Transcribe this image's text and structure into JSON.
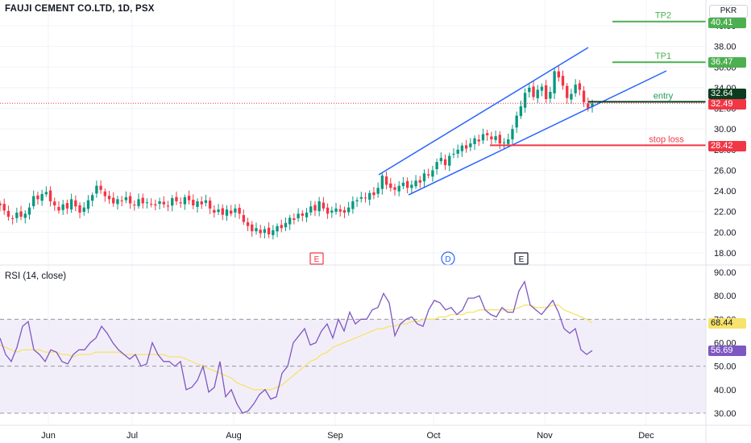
{
  "header": {
    "symbol_title": "FAUJI CEMENT CO.LTD, 1D, PSX",
    "currency": "PKR"
  },
  "rsi_panel": {
    "title": "RSI (14, close)",
    "value_badge": "56.69",
    "ma_badge": "68.44"
  },
  "price_badges": {
    "tp2": "40.41",
    "tp1": "36.47",
    "entry_price": "32.64",
    "last_price": "32.49",
    "stop_loss_price": "28.42"
  },
  "annotations": {
    "tp2": "TP2",
    "tp1": "TP1",
    "entry": "entry",
    "stop_loss": "stop loss"
  },
  "event_markers": [
    "E",
    "D",
    "E"
  ],
  "colors": {
    "up": "#089981",
    "down": "#f23645",
    "channel": "#2962ff",
    "target": "#4caf50",
    "stop": "#f23645",
    "entry_bg": "#0a3d1f",
    "rsi_line": "#7e57c2",
    "rsi_ma": "#f7e26b",
    "rsi_band": "#ede7f6"
  },
  "chart_data": [
    {
      "type": "candlestick",
      "title": "FAUJI CEMENT CO.LTD, 1D, PSX",
      "x_ticks": [
        "Jun",
        "Jul",
        "Aug",
        "Sep",
        "Oct",
        "Nov",
        "Dec"
      ],
      "y_ticks": [
        "18.00",
        "20.00",
        "22.00",
        "24.00",
        "26.00",
        "28.00",
        "30.00",
        "32.00",
        "34.00",
        "36.00",
        "38.00",
        "40.00"
      ],
      "ylim": [
        17.0,
        41.5
      ],
      "close_series": [
        22.6,
        22.1,
        21.5,
        21.3,
        21.9,
        21.5,
        21.8,
        22.4,
        23.5,
        23.2,
        23.7,
        23.9,
        23.0,
        22.6,
        22.1,
        22.7,
        22.3,
        23.2,
        22.5,
        21.9,
        22.4,
        23.1,
        23.6,
        24.5,
        24.1,
        23.5,
        23.2,
        22.8,
        23.2,
        23.0,
        23.4,
        22.8,
        22.6,
        23.2,
        22.8,
        22.9,
        22.7,
        22.6,
        23.0,
        22.7,
        22.5,
        23.3,
        23.0,
        22.8,
        23.4,
        23.1,
        22.6,
        23.0,
        22.7,
        23.1,
        22.3,
        21.9,
        22.2,
        21.7,
        22.2,
        21.8,
        22.3,
        21.8,
        21.0,
        20.6,
        20.1,
        20.4,
        19.9,
        20.3,
        19.8,
        20.2,
        20.6,
        20.4,
        20.9,
        21.4,
        21.2,
        21.8,
        21.6,
        21.9,
        22.5,
        22.1,
        23.0,
        22.3,
        21.8,
        22.1,
        22.3,
        22.0,
        21.9,
        22.4,
        23.0,
        23.1,
        23.4,
        23.3,
        23.8,
        23.6,
        24.3,
        25.5,
        24.6,
        24.3,
        24.1,
        24.5,
        24.8,
        24.3,
        24.6,
        25.0,
        24.8,
        25.7,
        25.5,
        26.0,
        26.8,
        27.2,
        26.5,
        27.4,
        27.6,
        28.0,
        28.4,
        28.1,
        28.6,
        29.1,
        28.8,
        29.5,
        29.4,
        29.0,
        29.3,
        28.6,
        28.7,
        29.0,
        30.0,
        31.3,
        32.2,
        33.5,
        34.0,
        33.1,
        33.8,
        34.1,
        32.9,
        33.6,
        35.6,
        35.0,
        34.2,
        33.0,
        33.4,
        34.3,
        33.8,
        32.6,
        32.0,
        32.49
      ],
      "annotations": [
        {
          "label": "TP2",
          "y": 40.41
        },
        {
          "label": "TP1",
          "y": 36.47
        },
        {
          "label": "entry",
          "y": 32.64
        },
        {
          "label": "stop loss",
          "y": 28.42
        }
      ],
      "last_price": 32.49
    },
    {
      "type": "line",
      "title": "RSI (14, close)",
      "y_ticks": [
        "30.00",
        "40.00",
        "50.00",
        "60.00",
        "70.00",
        "80.00",
        "90.00"
      ],
      "ylim": [
        28,
        92
      ],
      "bands": [
        30,
        50,
        70
      ],
      "series": [
        {
          "name": "RSI",
          "values": [
            62,
            55,
            52,
            58,
            67,
            69,
            57,
            55,
            52,
            57,
            56,
            52,
            51,
            55,
            57,
            57,
            60,
            62,
            67,
            64,
            60,
            57,
            55,
            53,
            55,
            50,
            51,
            60,
            55,
            52,
            52,
            50,
            52,
            40,
            41,
            44,
            50,
            39,
            41,
            52,
            37,
            40,
            34,
            30,
            31,
            34,
            38,
            40,
            36,
            37,
            47,
            50,
            60,
            63,
            66,
            59,
            60,
            65,
            68,
            62,
            70,
            65,
            73,
            68,
            70,
            70,
            74,
            75,
            81,
            77,
            63,
            68,
            70,
            71,
            68,
            67,
            74,
            78,
            77,
            74,
            75,
            72,
            74,
            79,
            79,
            80,
            74,
            72,
            71,
            75,
            73,
            73,
            82,
            86,
            76,
            74,
            72,
            75,
            78,
            73,
            66,
            64,
            66,
            57,
            55,
            56.69
          ]
        },
        {
          "name": "RSI-based MA",
          "values": [
            59,
            58,
            57,
            56,
            57,
            57,
            57,
            57,
            56,
            56,
            56,
            55,
            55,
            54,
            55,
            55,
            55,
            56,
            56,
            56,
            56,
            56,
            55,
            55,
            55,
            55,
            55,
            55,
            55,
            55,
            54,
            54,
            54,
            53,
            52,
            51,
            50,
            49,
            48,
            47,
            46,
            45,
            43,
            42,
            41,
            40,
            40,
            40,
            40,
            41,
            42,
            44,
            46,
            48,
            50,
            52,
            53,
            55,
            56,
            58,
            59,
            60,
            61,
            62,
            63,
            64,
            65,
            66,
            66,
            67,
            67,
            68,
            68,
            69,
            69,
            70,
            70,
            70,
            71,
            71,
            72,
            72,
            72,
            73,
            73,
            74,
            74,
            74,
            74,
            74,
            74,
            74,
            75,
            76,
            76,
            75,
            75,
            75,
            76,
            76,
            74,
            73,
            72,
            71,
            70,
            68.44
          ]
        }
      ]
    }
  ]
}
